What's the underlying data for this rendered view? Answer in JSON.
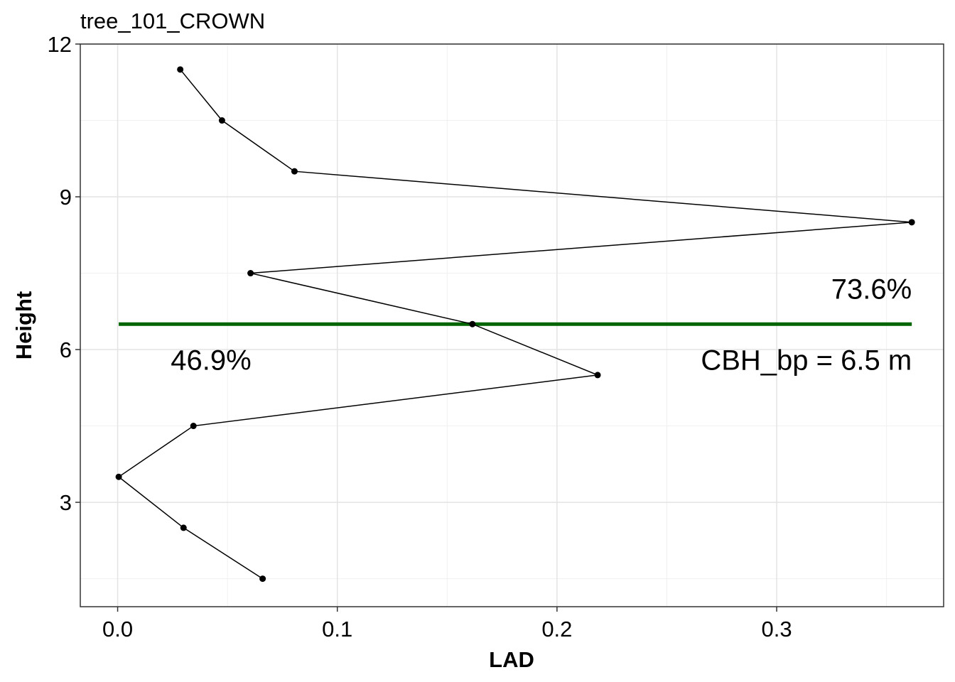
{
  "chart_data": {
    "type": "line",
    "title": "tree_101_CROWN",
    "xlabel": "LAD",
    "ylabel": "Height",
    "xlim": [
      -0.017,
      0.376
    ],
    "ylim": [
      0.95,
      12
    ],
    "x_ticks": [
      "0.0",
      "0.1",
      "0.2",
      "0.3"
    ],
    "x_tick_values": [
      0.0,
      0.1,
      0.2,
      0.3
    ],
    "y_ticks": [
      "3",
      "6",
      "9",
      "12"
    ],
    "y_tick_values": [
      3,
      6,
      9,
      12
    ],
    "grid": true,
    "series": [
      {
        "x": [
          0.066,
          0.03,
          0.0005,
          0.0345,
          0.2185,
          0.1615,
          0.0605,
          0.3615,
          0.0805,
          0.0475,
          0.0285
        ],
        "y": [
          1.5,
          2.5,
          3.5,
          4.5,
          5.5,
          6.5,
          7.5,
          8.5,
          9.5,
          10.5,
          11.5
        ],
        "color": "#000000"
      }
    ],
    "reference_line": {
      "y": 6.5,
      "x_from": 0.0005,
      "x_to": 0.3615,
      "color": "#006400"
    },
    "annotations": [
      {
        "text": "73.6%",
        "x": 0.3615,
        "y": 7.0,
        "anchor": "end"
      },
      {
        "text": "46.9%",
        "x": 0.0425,
        "y": 5.6,
        "anchor": "middle"
      },
      {
        "text": "CBH_bp = 6.5 m",
        "x": 0.3615,
        "y": 5.6,
        "anchor": "end"
      }
    ]
  }
}
